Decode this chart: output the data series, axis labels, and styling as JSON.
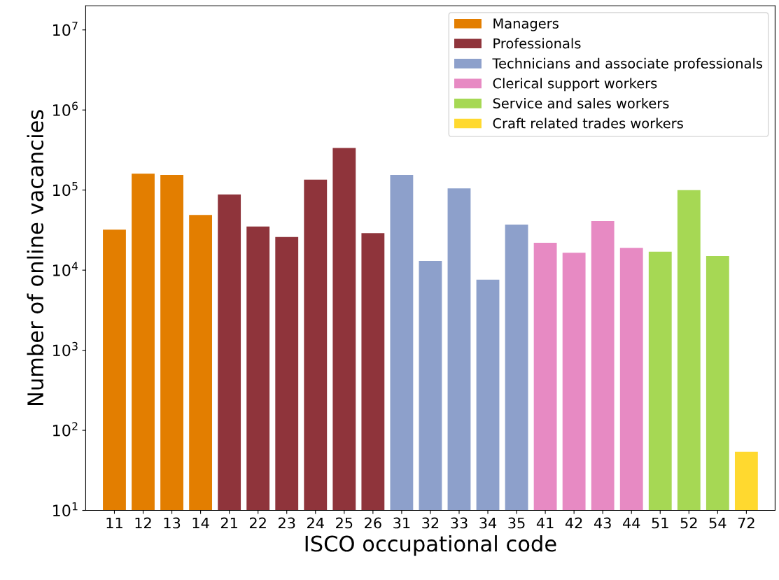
{
  "chart_data": {
    "type": "bar",
    "xlabel": "ISCO occupational code",
    "ylabel": "Number of online vacancies",
    "categories": [
      "11",
      "12",
      "13",
      "14",
      "21",
      "22",
      "23",
      "24",
      "25",
      "26",
      "31",
      "32",
      "33",
      "34",
      "35",
      "41",
      "42",
      "43",
      "44",
      "51",
      "52",
      "54",
      "72"
    ],
    "series": [
      {
        "name": "Managers",
        "color": "#e37e00",
        "values": [
          32000,
          160000,
          155000,
          49000,
          null,
          null,
          null,
          null,
          null,
          null,
          null,
          null,
          null,
          null,
          null,
          null,
          null,
          null,
          null,
          null,
          null,
          null,
          null
        ]
      },
      {
        "name": "Professionals",
        "color": "#8f343b",
        "values": [
          null,
          null,
          null,
          null,
          88000,
          35000,
          26000,
          135000,
          335000,
          29000,
          null,
          null,
          null,
          null,
          null,
          null,
          null,
          null,
          null,
          null,
          null,
          null,
          null
        ]
      },
      {
        "name": "Technicians and associate professionals",
        "color": "#8da0cb",
        "values": [
          null,
          null,
          null,
          null,
          null,
          null,
          null,
          null,
          null,
          null,
          155000,
          13000,
          105000,
          7600,
          37000,
          null,
          null,
          null,
          null,
          null,
          null,
          null,
          null
        ]
      },
      {
        "name": "Clerical support workers",
        "color": "#e78ac3",
        "values": [
          null,
          null,
          null,
          null,
          null,
          null,
          null,
          null,
          null,
          null,
          null,
          null,
          null,
          null,
          null,
          22000,
          16500,
          41000,
          19000,
          null,
          null,
          null,
          null
        ]
      },
      {
        "name": "Service and sales workers",
        "color": "#a6d854",
        "values": [
          null,
          null,
          null,
          null,
          null,
          null,
          null,
          null,
          null,
          null,
          null,
          null,
          null,
          null,
          null,
          null,
          null,
          null,
          null,
          17000,
          100000,
          15000,
          null
        ]
      },
      {
        "name": "Craft related trades workers",
        "color": "#ffd92f",
        "values": [
          null,
          null,
          null,
          null,
          null,
          null,
          null,
          null,
          null,
          null,
          null,
          null,
          null,
          null,
          null,
          null,
          null,
          null,
          null,
          null,
          null,
          null,
          54
        ]
      }
    ],
    "log": "y",
    "ylim": [
      10,
      20000000
    ],
    "yticks": [
      {
        "value": 10,
        "label": "10$^{1}$"
      },
      {
        "value": 100,
        "label": "10$^{2}$"
      },
      {
        "value": 1000,
        "label": "10$^{3}$"
      },
      {
        "value": 10000,
        "label": "10$^{4}$"
      },
      {
        "value": 100000,
        "label": "10$^{5}$"
      },
      {
        "value": 1000000,
        "label": "10$^{6}$"
      },
      {
        "value": 10000000,
        "label": "10$^{7}$"
      }
    ],
    "legend": "top right",
    "grid": false
  }
}
